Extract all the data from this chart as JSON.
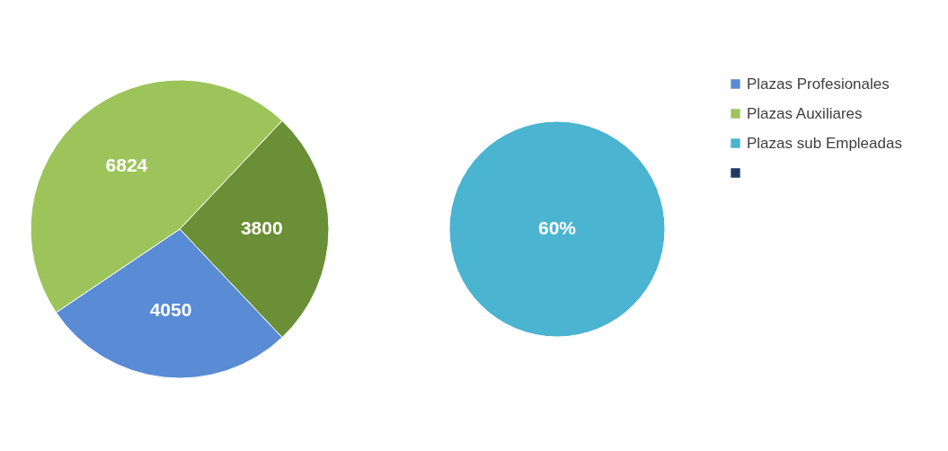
{
  "chart_data": [
    {
      "type": "pie",
      "categories": [
        null,
        "Plazas Profesionales",
        "Plazas Auxiliares"
      ],
      "values": [
        3800,
        4050,
        6824
      ],
      "colors": [
        "#6b8f36",
        "#5a8bd5",
        "#9cc45b"
      ],
      "data_labels": true,
      "legend": "right"
    },
    {
      "type": "pie",
      "categories": [
        "Plazas sub Empleadas",
        null
      ],
      "values": [
        60,
        null
      ],
      "colors": [
        "#4bb4d0",
        "#1f3864"
      ],
      "value_labels": [
        "60%",
        null
      ],
      "legend": "right"
    }
  ]
}
